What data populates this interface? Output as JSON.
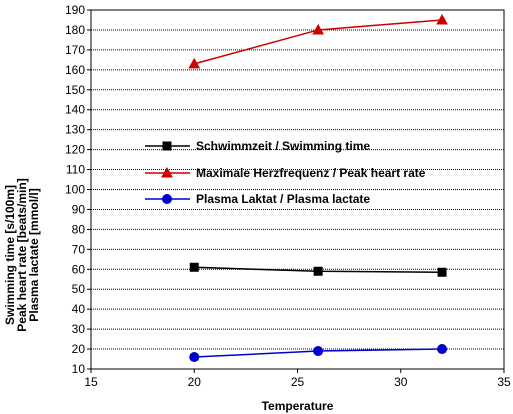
{
  "chart_data": {
    "type": "line",
    "xlabel": "Temperature",
    "ylabel_lines": [
      "Swimming time [s/100m]",
      "Peak heart rate [beats/min]",
      "Plasma lactate [mmol/l]"
    ],
    "xlim": [
      15,
      35
    ],
    "ylim": [
      10,
      190
    ],
    "xticks": [
      15,
      20,
      25,
      30,
      35
    ],
    "yticks": [
      10,
      20,
      30,
      40,
      50,
      60,
      70,
      80,
      90,
      100,
      110,
      120,
      130,
      140,
      150,
      160,
      170,
      180,
      190
    ],
    "grid": "horizontal",
    "legend_position": "center-left",
    "series": [
      {
        "name": "Schwimmzeit / Swimming time",
        "color": "#000000",
        "marker": "square",
        "x": [
          20,
          26,
          32
        ],
        "y": [
          61,
          59,
          58.5
        ]
      },
      {
        "name": "Maximale Herzfrequenz / Peak heart rate",
        "color": "#cc0000",
        "marker": "triangle",
        "x": [
          20,
          26,
          32
        ],
        "y": [
          163,
          180,
          185
        ]
      },
      {
        "name": "Plasma Laktat / Plasma lactate",
        "color": "#0000cc",
        "marker": "circle",
        "x": [
          20,
          26,
          32
        ],
        "y": [
          16,
          19,
          20
        ]
      }
    ]
  }
}
